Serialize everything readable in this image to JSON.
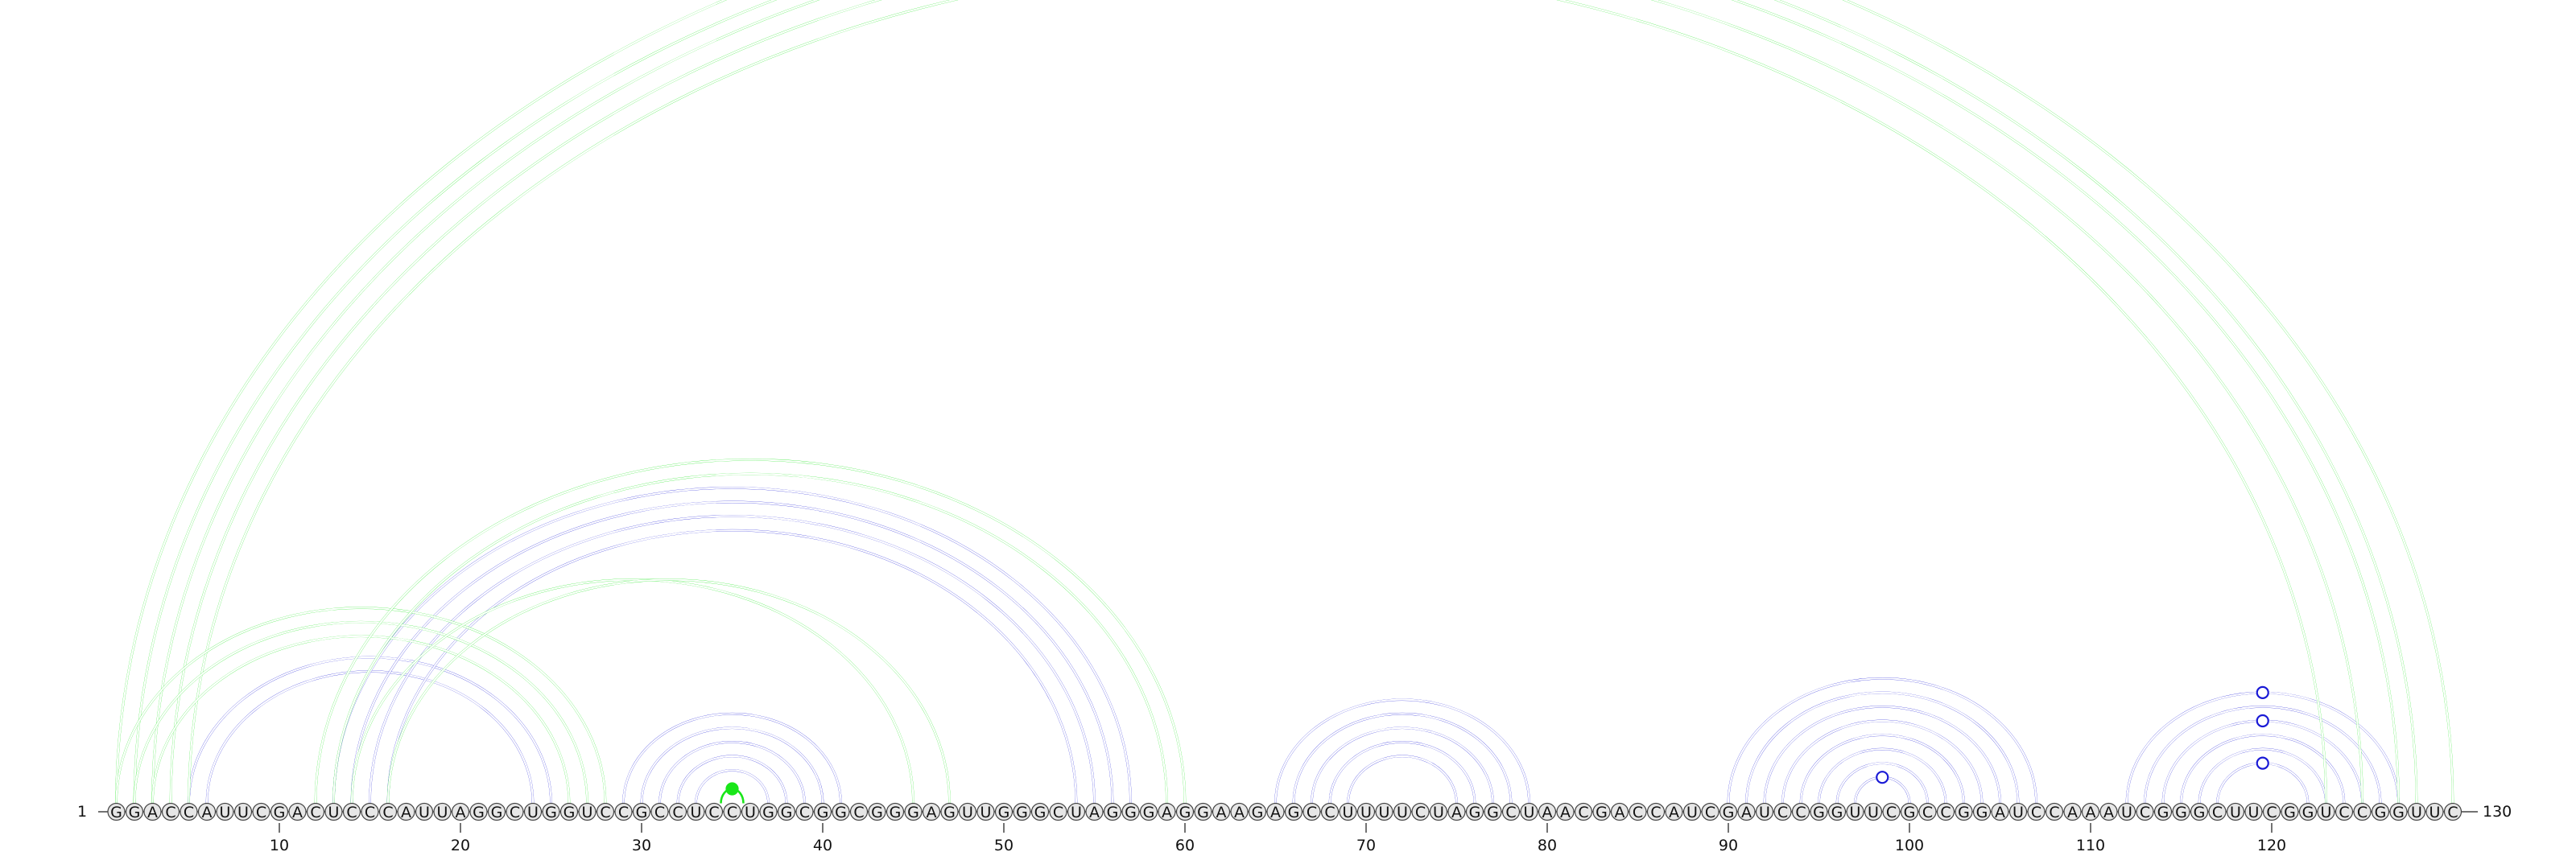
{
  "sequence": "GGACCAUUCGACUCCCAUUAGGCUGGUCCGCCUCCUGGCGGCGGGAGUUGGGCUAGGGAGGAAGAGCCUUUUCUAGGCUAACGACCAUCGAUCCGGUUCGCCGGAUCCAAAUCGGGCUUCGGUCCGGUUC",
  "start_label": "1",
  "end_label": "130",
  "ticks": [
    "10",
    "20",
    "30",
    "40",
    "50",
    "60",
    "70",
    "80",
    "90",
    "100",
    "110",
    "120"
  ],
  "colors": {
    "blue": "#1a1ad6",
    "green": "#19e619"
  },
  "arcs": [
    {
      "from": 5,
      "to": 25,
      "color": "blue"
    },
    {
      "from": 6,
      "to": 24,
      "color": "blue"
    },
    {
      "from": 13,
      "to": 57,
      "color": "blue"
    },
    {
      "from": 14,
      "to": 56,
      "color": "blue"
    },
    {
      "from": 15,
      "to": 55,
      "color": "blue"
    },
    {
      "from": 16,
      "to": 54,
      "color": "blue"
    },
    {
      "from": 29,
      "to": 41,
      "color": "blue"
    },
    {
      "from": 30,
      "to": 40,
      "color": "blue"
    },
    {
      "from": 31,
      "to": 39,
      "color": "blue"
    },
    {
      "from": 32,
      "to": 38,
      "color": "blue"
    },
    {
      "from": 33,
      "to": 37,
      "color": "blue"
    },
    {
      "from": 65,
      "to": 79,
      "color": "blue"
    },
    {
      "from": 66,
      "to": 78,
      "color": "blue"
    },
    {
      "from": 67,
      "to": 77,
      "color": "blue"
    },
    {
      "from": 68,
      "to": 76,
      "color": "blue"
    },
    {
      "from": 69,
      "to": 75,
      "color": "blue"
    },
    {
      "from": 90,
      "to": 107,
      "color": "blue"
    },
    {
      "from": 91,
      "to": 106,
      "color": "blue"
    },
    {
      "from": 92,
      "to": 105,
      "color": "blue"
    },
    {
      "from": 93,
      "to": 104,
      "color": "blue"
    },
    {
      "from": 94,
      "to": 103,
      "color": "blue"
    },
    {
      "from": 95,
      "to": 102,
      "color": "blue"
    },
    {
      "from": 96,
      "to": 101,
      "color": "blue"
    },
    {
      "from": 97,
      "to": 100,
      "color": "blue"
    },
    {
      "from": 112,
      "to": 127,
      "color": "blue"
    },
    {
      "from": 113,
      "to": 126,
      "color": "blue"
    },
    {
      "from": 114,
      "to": 125,
      "color": "blue"
    },
    {
      "from": 115,
      "to": 124,
      "color": "blue"
    },
    {
      "from": 116,
      "to": 123,
      "color": "blue"
    },
    {
      "from": 117,
      "to": 122,
      "color": "blue"
    },
    {
      "from": 1,
      "to": 130,
      "color": "green"
    },
    {
      "from": 2,
      "to": 128,
      "color": "green"
    },
    {
      "from": 3,
      "to": 127,
      "color": "green"
    },
    {
      "from": 4,
      "to": 125,
      "color": "green"
    },
    {
      "from": 5,
      "to": 123,
      "color": "green"
    },
    {
      "from": 1,
      "to": 28,
      "color": "green"
    },
    {
      "from": 2,
      "to": 27,
      "color": "green"
    },
    {
      "from": 3,
      "to": 26,
      "color": "green"
    },
    {
      "from": 12,
      "to": 60,
      "color": "green"
    },
    {
      "from": 13,
      "to": 59,
      "color": "green"
    },
    {
      "from": 14,
      "to": 45,
      "color": "green"
    },
    {
      "from": 16,
      "to": 47,
      "color": "green"
    },
    {
      "from": 35,
      "to": 35,
      "color": "green"
    }
  ],
  "markers": [
    {
      "arc_index": 30,
      "color": "green",
      "style": "open"
    },
    {
      "arc_index": 42,
      "color": "green",
      "style": "filled"
    },
    {
      "arc_index": 24,
      "color": "blue",
      "style": "open"
    },
    {
      "arc_index": 26,
      "color": "blue",
      "style": "open"
    },
    {
      "arc_index": 29,
      "color": "blue",
      "style": "open"
    },
    {
      "arc_index": 23,
      "color": "blue",
      "style": "open"
    }
  ]
}
